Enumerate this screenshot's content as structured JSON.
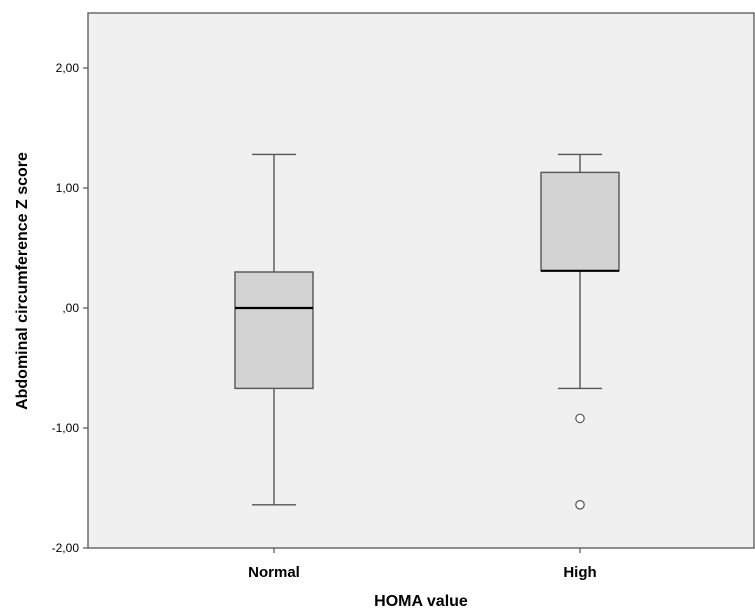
{
  "chart_data": {
    "type": "boxplot",
    "title": "",
    "xlabel": "HOMA value",
    "ylabel": "Abdominal circumference Z score",
    "categories": [
      "Normal",
      "High"
    ],
    "ylim": [
      -2.0,
      2.0
    ],
    "yticks": [
      2.0,
      1.0,
      0.0,
      -1.0,
      -2.0
    ],
    "ytick_labels": [
      "2,00",
      "1,00",
      ",00",
      "-1,00",
      "-2,00"
    ],
    "grid": false,
    "series": [
      {
        "category": "Normal",
        "whisker_low": -1.64,
        "q1": -0.67,
        "median": 0.0,
        "q3": 0.3,
        "whisker_high": 1.28,
        "outliers": []
      },
      {
        "category": "High",
        "whisker_low": -0.67,
        "q1": 0.31,
        "median": 0.31,
        "q3": 1.13,
        "whisker_high": 1.28,
        "outliers": [
          -0.92,
          -1.64
        ]
      }
    ],
    "colors": {
      "plot_background": "#f0f0f0",
      "box_fill": "#d3d3d3",
      "outline": "#555555",
      "median_line": "#000000"
    }
  }
}
